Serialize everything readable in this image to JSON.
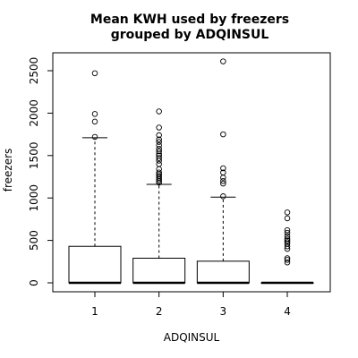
{
  "chart_data": {
    "type": "boxplot",
    "title_lines": [
      "Mean KWH used by freezers",
      "grouped by ADQINSUL"
    ],
    "xlabel": "ADQINSUL",
    "ylabel": "freezers",
    "categories": [
      "1",
      "2",
      "3",
      "4"
    ],
    "y_ticks": [
      0,
      500,
      1000,
      1500,
      2000,
      2500
    ],
    "y_tick_labels": [
      "0",
      "500",
      "1000",
      "1500",
      "2000",
      "2500"
    ],
    "ylim": [
      -100,
      2700
    ],
    "grid": false,
    "boxes": [
      {
        "category": "1",
        "min": 0,
        "q1": 0,
        "median": 0,
        "q3": 430,
        "max": 1710,
        "outliers": [
          1720,
          1900,
          1990,
          2470
        ]
      },
      {
        "category": "2",
        "min": 0,
        "q1": 0,
        "median": 0,
        "q3": 290,
        "max": 1160,
        "outliers": [
          1180,
          1200,
          1220,
          1240,
          1260,
          1280,
          1300,
          1340,
          1400,
          1440,
          1470,
          1500,
          1520,
          1550,
          1580,
          1620,
          1660,
          1690,
          1740,
          1830,
          2020
        ]
      },
      {
        "category": "3",
        "min": 0,
        "q1": 0,
        "median": 0,
        "q3": 255,
        "max": 1010,
        "outliers": [
          1020,
          1170,
          1200,
          1240,
          1300,
          1350,
          1750,
          2610
        ]
      },
      {
        "category": "4",
        "min": 0,
        "q1": 0,
        "median": 0,
        "q3": 0,
        "max": 0,
        "outliers": [
          240,
          270,
          290,
          400,
          430,
          460,
          480,
          500,
          520,
          550,
          590,
          620,
          760,
          830
        ]
      }
    ]
  }
}
